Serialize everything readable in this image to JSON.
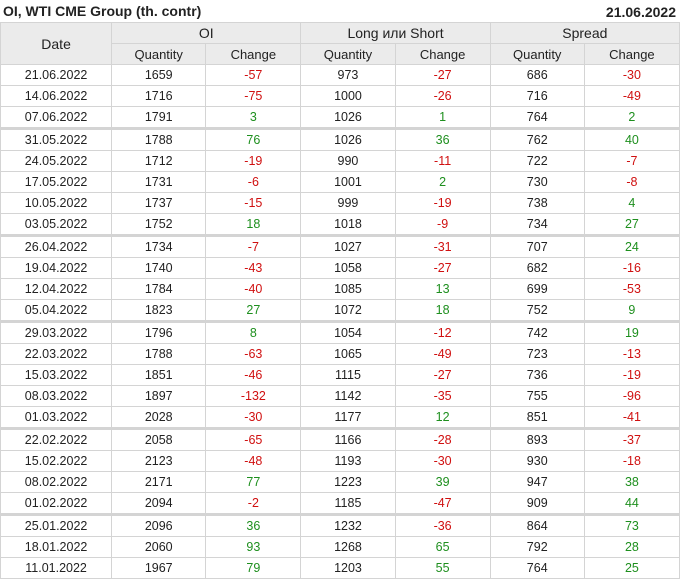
{
  "header": {
    "title": "OI, WTI CME Group (th. contr)",
    "date": "21.06.2022"
  },
  "columns": {
    "date": "Date",
    "groups": [
      "OI",
      "Long или Short",
      "Spread"
    ],
    "quantity": "Quantity",
    "change": "Change"
  },
  "colors": {
    "negative": "#d01010",
    "positive": "#1e8f1e",
    "header_bg": "#ebebeb"
  },
  "rows": [
    [
      "21.06.2022",
      "1659",
      "-57",
      "973",
      "-27",
      "686",
      "-30"
    ],
    [
      "14.06.2022",
      "1716",
      "-75",
      "1000",
      "-26",
      "716",
      "-49"
    ],
    [
      "07.06.2022",
      "1791",
      "3",
      "1026",
      "1",
      "764",
      "2"
    ],
    [
      "31.05.2022",
      "1788",
      "76",
      "1026",
      "36",
      "762",
      "40"
    ],
    [
      "24.05.2022",
      "1712",
      "-19",
      "990",
      "-11",
      "722",
      "-7"
    ],
    [
      "17.05.2022",
      "1731",
      "-6",
      "1001",
      "2",
      "730",
      "-8"
    ],
    [
      "10.05.2022",
      "1737",
      "-15",
      "999",
      "-19",
      "738",
      "4"
    ],
    [
      "03.05.2022",
      "1752",
      "18",
      "1018",
      "-9",
      "734",
      "27"
    ],
    [
      "26.04.2022",
      "1734",
      "-7",
      "1027",
      "-31",
      "707",
      "24"
    ],
    [
      "19.04.2022",
      "1740",
      "-43",
      "1058",
      "-27",
      "682",
      "-16"
    ],
    [
      "12.04.2022",
      "1784",
      "-40",
      "1085",
      "13",
      "699",
      "-53"
    ],
    [
      "05.04.2022",
      "1823",
      "27",
      "1072",
      "18",
      "752",
      "9"
    ],
    [
      "29.03.2022",
      "1796",
      "8",
      "1054",
      "-12",
      "742",
      "19"
    ],
    [
      "22.03.2022",
      "1788",
      "-63",
      "1065",
      "-49",
      "723",
      "-13"
    ],
    [
      "15.03.2022",
      "1851",
      "-46",
      "1115",
      "-27",
      "736",
      "-19"
    ],
    [
      "08.03.2022",
      "1897",
      "-132",
      "1142",
      "-35",
      "755",
      "-96"
    ],
    [
      "01.03.2022",
      "2028",
      "-30",
      "1177",
      "12",
      "851",
      "-41"
    ],
    [
      "22.02.2022",
      "2058",
      "-65",
      "1166",
      "-28",
      "893",
      "-37"
    ],
    [
      "15.02.2022",
      "2123",
      "-48",
      "1193",
      "-30",
      "930",
      "-18"
    ],
    [
      "08.02.2022",
      "2171",
      "77",
      "1223",
      "39",
      "947",
      "38"
    ],
    [
      "01.02.2022",
      "2094",
      "-2",
      "1185",
      "-47",
      "909",
      "44"
    ],
    [
      "25.01.2022",
      "2096",
      "36",
      "1232",
      "-36",
      "864",
      "73"
    ],
    [
      "18.01.2022",
      "2060",
      "93",
      "1268",
      "65",
      "792",
      "28"
    ],
    [
      "11.01.2022",
      "1967",
      "79",
      "1203",
      "55",
      "764",
      "25"
    ]
  ]
}
